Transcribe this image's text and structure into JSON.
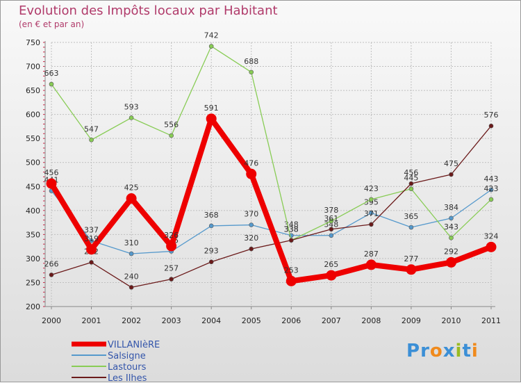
{
  "chart_data": {
    "type": "line",
    "title": "Evolution des Impôts locaux par Habitant",
    "subtitle": "(en € et par an)",
    "xlabel": "",
    "ylabel": "",
    "categories": [
      "2000",
      "2001",
      "2002",
      "2003",
      "2004",
      "2005",
      "2006",
      "2007",
      "2008",
      "2009",
      "2010",
      "2011"
    ],
    "ylim": [
      200,
      750
    ],
    "yticks": [
      200,
      250,
      300,
      350,
      400,
      450,
      500,
      550,
      600,
      650,
      700,
      750
    ],
    "grid": true,
    "legend_position": "bottom-left",
    "series": [
      {
        "name": "VILLANIèRE",
        "color": "#ee0000",
        "values": [
          456,
          319,
          425,
          326,
          591,
          476,
          253,
          265,
          287,
          277,
          292,
          324
        ]
      },
      {
        "name": "Salsigne",
        "color": "#5599cc",
        "values": [
          441,
          337,
          310,
          315,
          368,
          370,
          348,
          348,
          395,
          365,
          384,
          443
        ]
      },
      {
        "name": "Lastours",
        "color": "#88cc55",
        "values": [
          663,
          547,
          593,
          556,
          742,
          688,
          338,
          378,
          423,
          445,
          343,
          423
        ]
      },
      {
        "name": "Les Ilhes",
        "color": "#6b1a1a",
        "values": [
          266,
          292,
          240,
          257,
          293,
          320,
          338,
          361,
          371,
          456,
          475,
          576
        ]
      }
    ]
  },
  "logo": {
    "text": "Proxiti",
    "letter_colors": [
      "#3b8fd6",
      "#3b8fd6",
      "#f08a1c",
      "#3b8fd6",
      "#99bb22",
      "#3b8fd6",
      "#f08a1c"
    ]
  }
}
